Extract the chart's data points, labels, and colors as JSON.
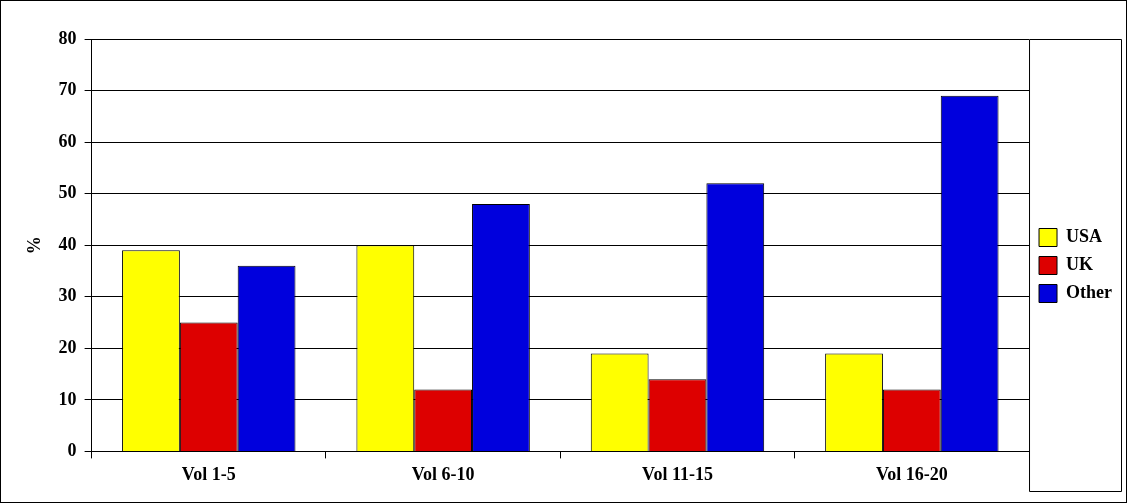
{
  "chart_data": {
    "type": "bar",
    "ylabel": "%",
    "categories": [
      "Vol 1-5",
      "Vol 6-10",
      "Vol 11-15",
      "Vol 16-20"
    ],
    "series": [
      {
        "name": "USA",
        "color": "#ffff00",
        "values": [
          39,
          40,
          19,
          19
        ]
      },
      {
        "name": "UK",
        "color": "#dd0000",
        "values": [
          25,
          12,
          14,
          12
        ]
      },
      {
        "name": "Other",
        "color": "#0000dd",
        "values": [
          36,
          48,
          52,
          69
        ]
      }
    ],
    "ylim": [
      0,
      80
    ],
    "yticks": [
      0,
      10,
      20,
      30,
      40,
      50,
      60,
      70,
      80
    ],
    "grid": "y",
    "legend": "right"
  }
}
